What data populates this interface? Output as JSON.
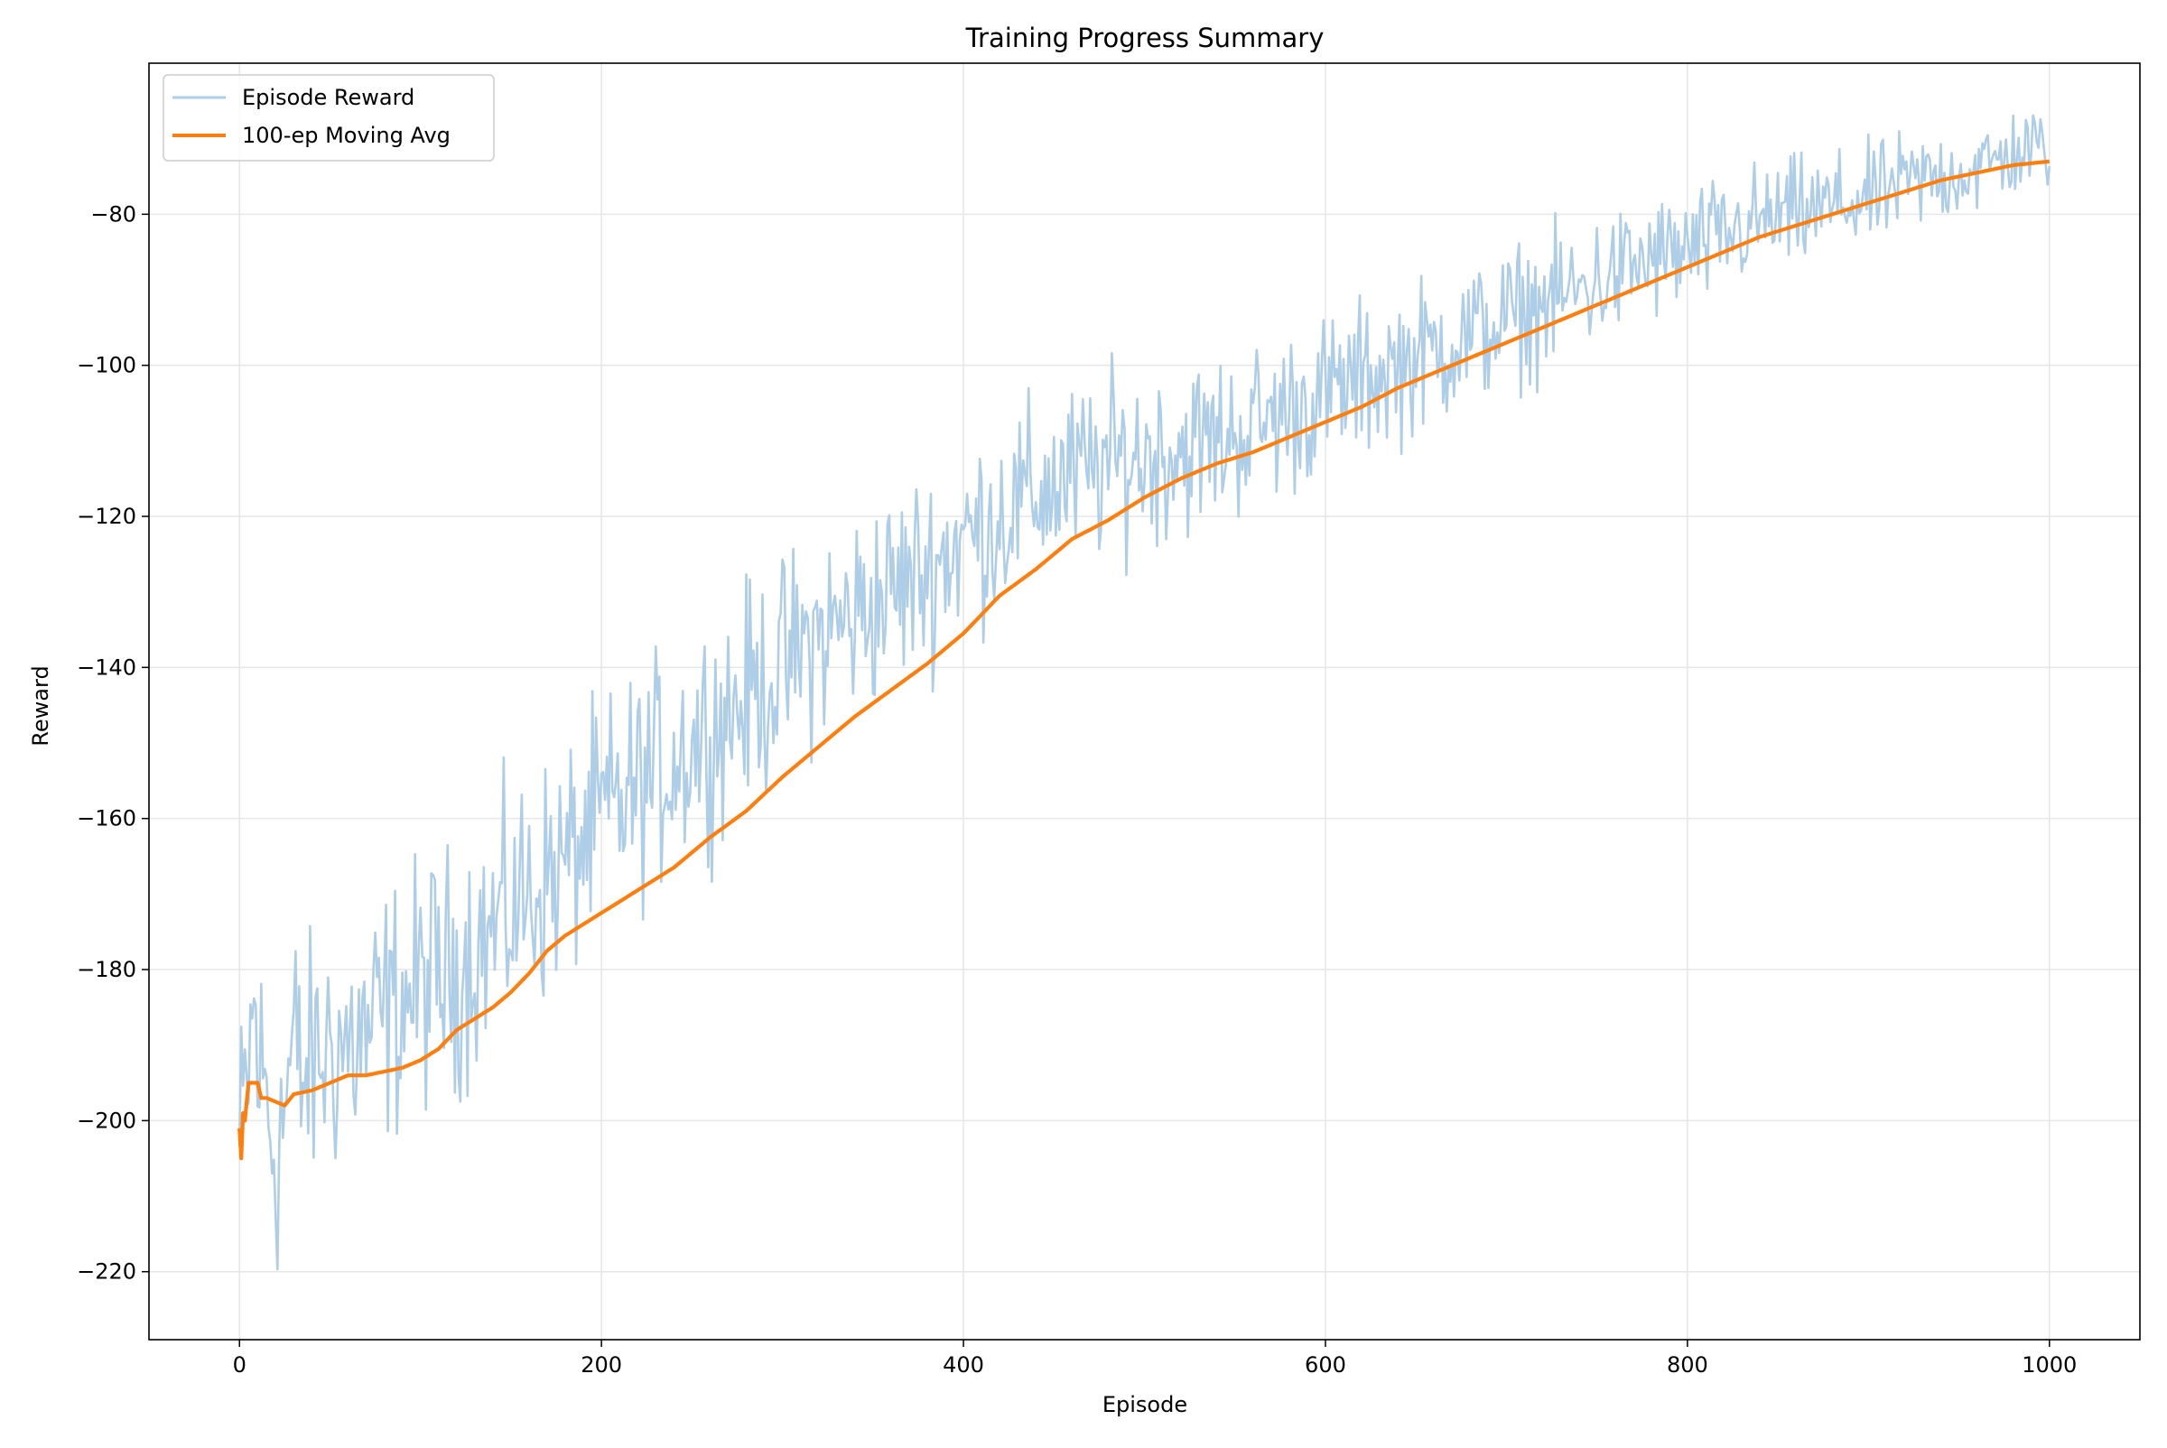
{
  "chart_data": {
    "type": "line",
    "title": "Training Progress Summary",
    "xlabel": "Episode",
    "ylabel": "Reward",
    "xlim": [
      -50,
      1050
    ],
    "ylim": [
      -229,
      -60
    ],
    "xticks": [
      0,
      200,
      400,
      600,
      800,
      1000
    ],
    "yticks": [
      -220,
      -200,
      -180,
      -160,
      -140,
      -120,
      -100,
      -80
    ],
    "xtick_labels": [
      "0",
      "200",
      "400",
      "600",
      "800",
      "1000"
    ],
    "ytick_labels": [
      "−220",
      "−200",
      "−180",
      "−160",
      "−140",
      "−120",
      "−100",
      "−80"
    ],
    "grid": true,
    "legend_position": "upper-left",
    "series": [
      {
        "name": "Episode Reward",
        "color": "#aecde6",
        "style": "noisy-line",
        "x": [
          0,
          2,
          5,
          8,
          10,
          15,
          20,
          25,
          30,
          35,
          40,
          50,
          60,
          70,
          80,
          90,
          100,
          110,
          120,
          130,
          140,
          150,
          160,
          170,
          180,
          190,
          200,
          210,
          220,
          230,
          240,
          250,
          260,
          270,
          280,
          290,
          300,
          320,
          340,
          360,
          380,
          400,
          420,
          440,
          460,
          480,
          500,
          520,
          540,
          560,
          580,
          600,
          620,
          640,
          660,
          680,
          700,
          720,
          740,
          760,
          780,
          800,
          820,
          840,
          860,
          880,
          900,
          920,
          940,
          960,
          980,
          1000
        ],
        "values": [
          -205,
          -200,
          -193,
          -185,
          -192,
          -197,
          -205,
          -198,
          -190,
          -195,
          -193,
          -190,
          -190,
          -189,
          -186,
          -184,
          -182,
          -181,
          -180,
          -177,
          -175,
          -172,
          -170,
          -168,
          -166,
          -163,
          -160,
          -158,
          -156,
          -154,
          -152,
          -150,
          -148,
          -146,
          -144,
          -142,
          -140,
          -136,
          -133,
          -130,
          -127,
          -123,
          -120,
          -117,
          -115,
          -113,
          -112,
          -111,
          -110,
          -108,
          -106,
          -104,
          -102,
          -100,
          -98,
          -96,
          -94,
          -92,
          -90,
          -88,
          -86,
          -85,
          -83,
          -81,
          -80,
          -79,
          -78,
          -76,
          -75,
          -74,
          -72,
          -71
        ]
      },
      {
        "name": "100-ep Moving Avg",
        "color": "#ff7f0e",
        "style": "smooth-line",
        "x": [
          0,
          1,
          2,
          3,
          5,
          8,
          10,
          12,
          15,
          20,
          25,
          30,
          40,
          50,
          60,
          70,
          80,
          90,
          100,
          110,
          120,
          130,
          140,
          150,
          160,
          170,
          180,
          190,
          200,
          220,
          240,
          260,
          280,
          300,
          320,
          340,
          360,
          380,
          400,
          420,
          440,
          460,
          480,
          500,
          520,
          540,
          560,
          580,
          600,
          620,
          640,
          660,
          680,
          700,
          720,
          740,
          760,
          780,
          800,
          820,
          840,
          860,
          880,
          900,
          920,
          940,
          960,
          980,
          1000
        ],
        "values": [
          -201,
          -205,
          -199,
          -200,
          -195,
          -195,
          -195,
          -197,
          -197,
          -197.5,
          -198,
          -196.5,
          -196,
          -195,
          -194,
          -194,
          -193.5,
          -193,
          -192,
          -190.5,
          -188,
          -186.5,
          -185,
          -183,
          -180.5,
          -177.5,
          -175.5,
          -174,
          -172.5,
          -169.5,
          -166.5,
          -162.5,
          -159,
          -154.5,
          -150.5,
          -146.5,
          -143,
          -139.5,
          -135.5,
          -130.5,
          -127,
          -123,
          -120.5,
          -117.5,
          -115,
          -113,
          -111.5,
          -109.5,
          -107.5,
          -105.5,
          -103,
          -101,
          -99,
          -97,
          -95,
          -93,
          -91,
          -89,
          -87,
          -85,
          -83,
          -81.5,
          -80,
          -78.5,
          -77,
          -75.5,
          -74.5,
          -73.5,
          -73
        ]
      }
    ]
  }
}
